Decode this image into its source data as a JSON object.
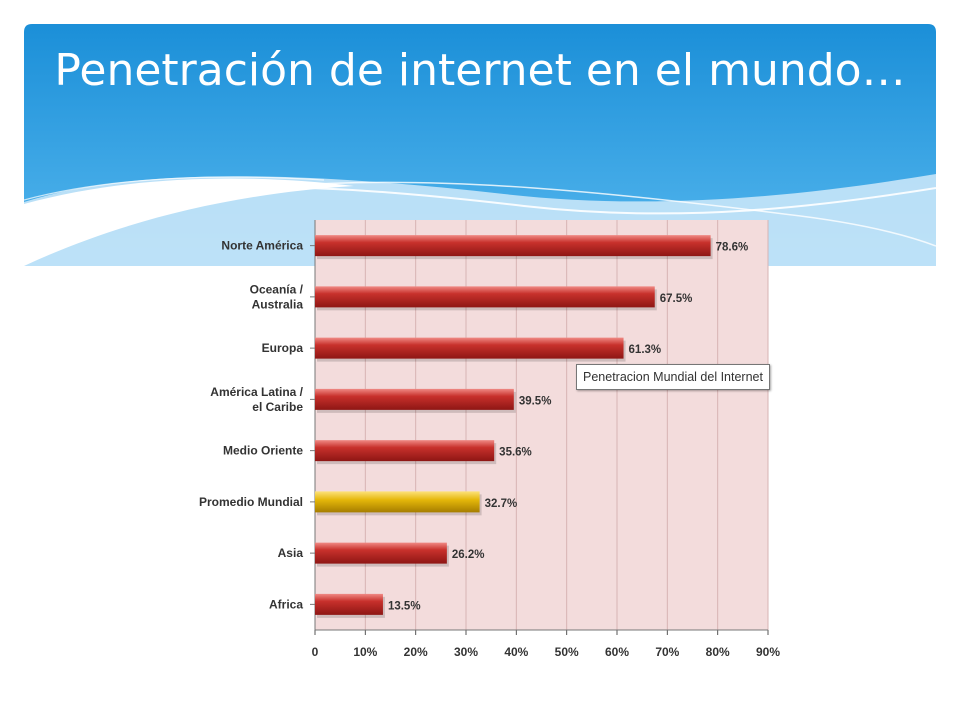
{
  "slide": {
    "title": "Penetración de internet en el mundo…"
  },
  "tooltip": {
    "text": "Penetracion Mundial del Internet"
  },
  "colors": {
    "header_top": "#1b8fd8",
    "header_bottom": "#55b7ee",
    "plot_background": "#f3dcdc",
    "grid": "#d7b3b3",
    "bar_red": "#c8312c",
    "bar_highlight": "#e5b80a"
  },
  "chart_data": {
    "type": "bar",
    "orientation": "horizontal",
    "categories": [
      [
        "Norte América"
      ],
      [
        "Oceanía  /",
        "Australia"
      ],
      [
        "Europa"
      ],
      [
        "América Latina /",
        "el Caribe"
      ],
      [
        "Medio Oriente"
      ],
      [
        "Promedio Mundial"
      ],
      [
        "Asia"
      ],
      [
        "Africa"
      ]
    ],
    "values": [
      78.6,
      67.5,
      61.3,
      39.5,
      35.6,
      32.7,
      26.2,
      13.5
    ],
    "value_labels": [
      "78.6%",
      "67.5%",
      "61.3%",
      "39.5%",
      "35.6%",
      "32.7%",
      "26.2%",
      "13.5%"
    ],
    "highlight_index": 5,
    "xlim": [
      0,
      90
    ],
    "xticks": [
      0,
      10,
      20,
      30,
      40,
      50,
      60,
      70,
      80,
      90
    ],
    "xtick_labels": [
      "0",
      "10%",
      "20%",
      "30%",
      "40%",
      "50%",
      "60%",
      "70%",
      "80%",
      "90%"
    ],
    "grid": true,
    "legend": false
  }
}
